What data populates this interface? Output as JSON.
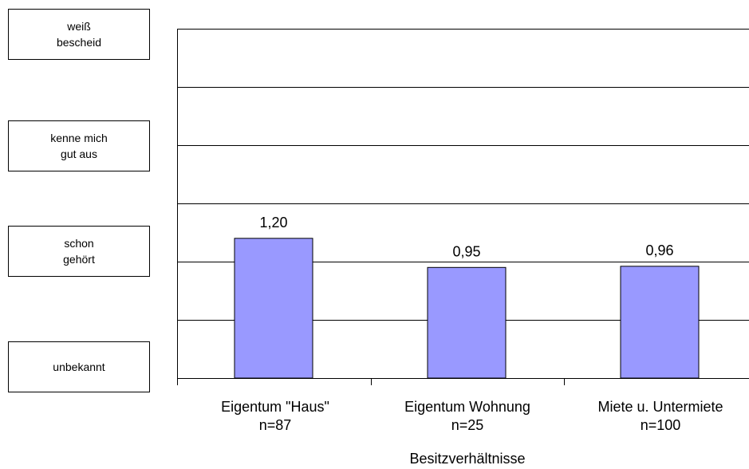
{
  "y_level_labels": [
    "weiß\nbescheid",
    "kenne mich\ngut aus",
    "schon\ngehört",
    "unbekannt"
  ],
  "chart_data": {
    "type": "bar",
    "categories": [
      "Eigentum \"Haus\"\nn=87",
      "Eigentum Wohnung\nn=25",
      "Miete u. Untermiete\nn=100"
    ],
    "values": [
      1.2,
      0.95,
      0.96
    ],
    "data_labels": [
      "1,20",
      "0,95",
      "0,96"
    ],
    "xlabel": "Besitzverhältnisse",
    "ylabel": "",
    "ylim": [
      0,
      3
    ],
    "grid": true,
    "bar_color": "#9999ff",
    "bar_edge_color": "#000000"
  }
}
